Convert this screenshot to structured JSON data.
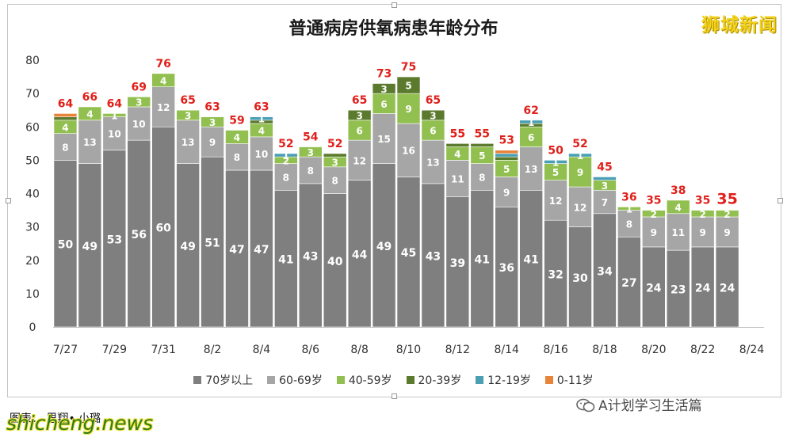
{
  "brand": "狮城新闻",
  "caption": "图表： 思翔• 小璐",
  "wechat_label": "A计划学习生活篇",
  "watermark": "shicheng.news",
  "colors": {
    "70plus": "#7f7f7f",
    "60_69": "#a6a6a6",
    "40_59": "#92c050",
    "20_39": "#5b7a2e",
    "12_19": "#4a9fb5",
    "0_11": "#e8833a",
    "total_label": "#e0201b"
  },
  "chart_data": {
    "type": "bar",
    "stacked": true,
    "title": "普通病房供氧病患年龄分布",
    "ylim": [
      0,
      80
    ],
    "yticks": [
      0,
      10,
      20,
      30,
      40,
      50,
      60,
      70,
      80
    ],
    "grid": false,
    "legend_position": "bottom",
    "categories": [
      "7/27",
      "7/28",
      "7/29",
      "7/30",
      "7/31",
      "8/1",
      "8/2",
      "8/3",
      "8/4",
      "8/5",
      "8/6",
      "8/7",
      "8/8",
      "8/9",
      "8/10",
      "8/11",
      "8/12",
      "8/13",
      "8/14",
      "8/15",
      "8/16",
      "8/17",
      "8/18",
      "8/19",
      "8/20",
      "8/21",
      "8/22",
      "8/23",
      "8/24"
    ],
    "tick_labels": [
      "7/27",
      "7/29",
      "7/31",
      "8/2",
      "8/4",
      "8/6",
      "8/8",
      "8/10",
      "8/12",
      "8/14",
      "8/16",
      "8/18",
      "8/20",
      "8/22",
      "8/24"
    ],
    "series": [
      {
        "name": "70岁以上",
        "values": [
          50,
          49,
          53,
          56,
          60,
          49,
          51,
          47,
          47,
          41,
          43,
          40,
          44,
          49,
          45,
          43,
          39,
          41,
          36,
          41,
          32,
          30,
          34,
          27,
          24,
          23,
          24,
          24,
          null
        ]
      },
      {
        "name": "60-69岁",
        "values": [
          8,
          13,
          10,
          10,
          12,
          13,
          9,
          8,
          10,
          8,
          8,
          8,
          12,
          15,
          16,
          13,
          11,
          8,
          9,
          13,
          12,
          12,
          7,
          8,
          9,
          11,
          9,
          9,
          null
        ]
      },
      {
        "name": "40-59岁",
        "values": [
          4,
          4,
          1,
          3,
          4,
          3,
          3,
          4,
          4,
          2,
          3,
          3,
          6,
          6,
          9,
          6,
          4,
          5,
          5,
          6,
          5,
          9,
          3,
          1,
          2,
          4,
          2,
          2,
          null
        ]
      },
      {
        "name": "20-39岁",
        "values": [
          1,
          0,
          0,
          0,
          0,
          0,
          0,
          0,
          1,
          0,
          0,
          1,
          3,
          3,
          5,
          3,
          1,
          1,
          1,
          1,
          0,
          0,
          0,
          0,
          0,
          0,
          0,
          0,
          null
        ]
      },
      {
        "name": "12-19岁",
        "values": [
          0,
          0,
          0,
          0,
          0,
          0,
          0,
          0,
          1,
          1,
          0,
          0,
          0,
          0,
          0,
          0,
          0,
          0,
          1,
          1,
          1,
          1,
          1,
          0,
          0,
          0,
          0,
          0,
          null
        ]
      },
      {
        "name": "0-11岁",
        "values": [
          1,
          0,
          0,
          0,
          0,
          0,
          0,
          0,
          0,
          0,
          0,
          0,
          0,
          0,
          0,
          0,
          0,
          0,
          1,
          0,
          0,
          0,
          0,
          0,
          0,
          0,
          0,
          0,
          null
        ]
      }
    ],
    "totals": [
      64,
      66,
      64,
      69,
      76,
      65,
      63,
      59,
      63,
      52,
      54,
      52,
      65,
      73,
      75,
      65,
      55,
      55,
      53,
      62,
      50,
      52,
      45,
      36,
      35,
      38,
      35,
      35,
      null
    ],
    "segment_labels": [
      [
        "50",
        "8",
        "4",
        "",
        "",
        ""
      ],
      [
        "49",
        "13",
        "4",
        "",
        "",
        ""
      ],
      [
        "53",
        "10",
        "1",
        "",
        "",
        ""
      ],
      [
        "56",
        "10",
        "3",
        "",
        "",
        ""
      ],
      [
        "60",
        "12",
        "4",
        "",
        "",
        ""
      ],
      [
        "49",
        "13",
        "3",
        "",
        "",
        ""
      ],
      [
        "51",
        "9",
        "3",
        "",
        "",
        ""
      ],
      [
        "47",
        "8",
        "4",
        "",
        "",
        ""
      ],
      [
        "47",
        "10",
        "4",
        "",
        "1",
        ""
      ],
      [
        "41",
        "8",
        "2",
        "",
        "1",
        ""
      ],
      [
        "43",
        "8",
        "3",
        "",
        "",
        ""
      ],
      [
        "40",
        "8",
        "3",
        "",
        "",
        ""
      ],
      [
        "44",
        "12",
        "6",
        "3",
        "",
        ""
      ],
      [
        "49",
        "15",
        "6",
        "3",
        "",
        ""
      ],
      [
        "45",
        "16",
        "9",
        "5",
        "",
        ""
      ],
      [
        "43",
        "13",
        "6",
        "3",
        "",
        ""
      ],
      [
        "39",
        "11",
        "4",
        "",
        "",
        ""
      ],
      [
        "41",
        "8",
        "5",
        "",
        "",
        ""
      ],
      [
        "36",
        "9",
        "5",
        "",
        "",
        ""
      ],
      [
        "41",
        "13",
        "6",
        "",
        "1",
        ""
      ],
      [
        "32",
        "12",
        "5",
        "",
        "1",
        ""
      ],
      [
        "30",
        "12",
        "9",
        "",
        "1",
        ""
      ],
      [
        "34",
        "7",
        "3",
        "",
        "",
        ""
      ],
      [
        "27",
        "8",
        "1",
        "",
        "",
        ""
      ],
      [
        "24",
        "9",
        "2",
        "",
        "",
        ""
      ],
      [
        "23",
        "11",
        "4",
        "",
        "",
        ""
      ],
      [
        "24",
        "9",
        "2",
        "",
        "",
        ""
      ],
      [
        "24",
        "9",
        "2",
        "",
        "",
        ""
      ],
      [
        "",
        "",
        "",
        "",
        "",
        ""
      ]
    ]
  }
}
